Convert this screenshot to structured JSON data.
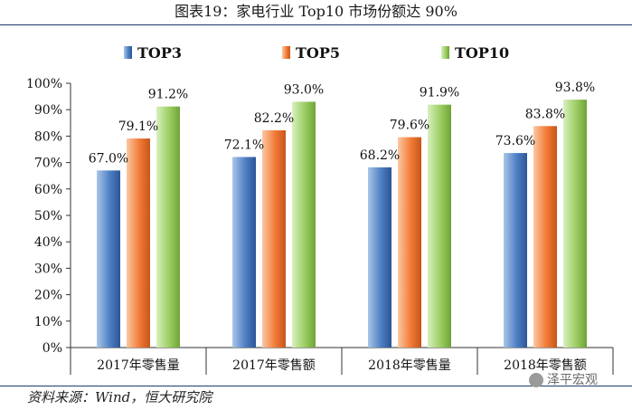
{
  "header": {
    "figure_title": "图表19：家电行业 Top10 市场份额达 90%"
  },
  "footer": {
    "source": "资料来源：Wind，恒大研究院",
    "watermark": "泽平宏观"
  },
  "colors": {
    "TOP3": {
      "light": "#a9c6e8",
      "mid": "#4f80c4",
      "dark": "#2b5597"
    },
    "TOP5": {
      "light": "#fbc8a4",
      "mid": "#f27b36",
      "dark": "#c5561a"
    },
    "TOP10": {
      "light": "#d8f0bf",
      "mid": "#9ccd62",
      "dark": "#6ea338"
    }
  },
  "chart_data": {
    "type": "bar",
    "title": "图表19：家电行业 Top10 市场份额达 90%",
    "categories": [
      "2017年零售量",
      "2017年零售额",
      "2018年零售量",
      "2018年零售额"
    ],
    "series": [
      {
        "name": "TOP3",
        "values": [
          67.0,
          72.1,
          68.2,
          73.6
        ],
        "labels": [
          "67.0%",
          "72.1%",
          "68.2%",
          "73.6%"
        ]
      },
      {
        "name": "TOP5",
        "values": [
          79.1,
          82.2,
          79.6,
          83.8
        ],
        "labels": [
          "79.1%",
          "82.2%",
          "79.6%",
          "83.8%"
        ]
      },
      {
        "name": "TOP10",
        "values": [
          91.2,
          93.0,
          91.9,
          93.8
        ],
        "labels": [
          "91.2%",
          "93.0%",
          "91.9%",
          "93.8%"
        ]
      }
    ],
    "yticks": [
      "0%",
      "10%",
      "20%",
      "30%",
      "40%",
      "50%",
      "60%",
      "70%",
      "80%",
      "90%",
      "100%"
    ],
    "ylim": [
      0,
      100
    ],
    "legend": "top-center",
    "xlabel": "",
    "ylabel": ""
  }
}
